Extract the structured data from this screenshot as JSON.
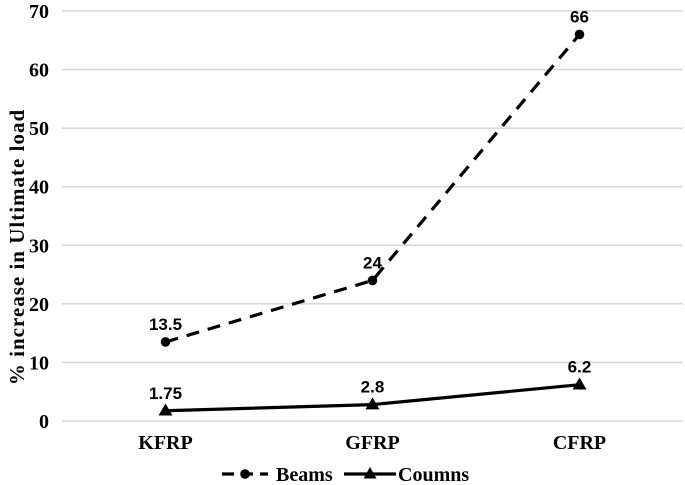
{
  "chart_data": {
    "type": "line",
    "title": "",
    "xlabel": "",
    "ylabel": "% increase in Ultimate load",
    "categories": [
      "KFRP",
      "GFRP",
      "CFRP"
    ],
    "series": [
      {
        "name": "Beams",
        "values": [
          13.5,
          24,
          66
        ],
        "data_labels": [
          "13.5",
          "24",
          "66"
        ],
        "line_style": "dashed",
        "marker": "circle",
        "color": "#000000"
      },
      {
        "name": "Coumns",
        "values": [
          1.75,
          2.8,
          6.2
        ],
        "data_labels": [
          "1.75",
          "2.8",
          "6.2"
        ],
        "line_style": "solid",
        "marker": "triangle",
        "color": "#000000"
      }
    ],
    "ylim": [
      0,
      70
    ],
    "yticks": [
      0,
      10,
      20,
      30,
      40,
      50,
      60,
      70
    ],
    "grid": "horizontal",
    "legend_position": "bottom-center",
    "colors": {
      "gridline": "#d9d9d9",
      "text": "#000000",
      "background": "#ffffff"
    }
  }
}
